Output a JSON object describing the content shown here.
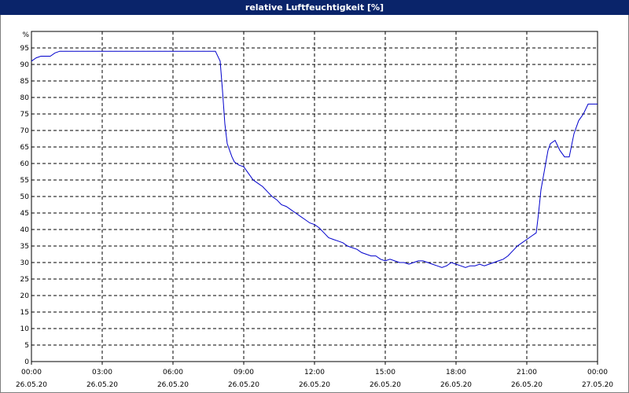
{
  "window": {
    "title": "relative Luftfeuchtigkeit [%]"
  },
  "chart_data": {
    "type": "line",
    "title": "relative Luftfeuchtigkeit [%]",
    "ylabel": "%",
    "xlabel": "",
    "ylim": [
      0,
      100
    ],
    "yticks": [
      0,
      5,
      10,
      15,
      20,
      25,
      30,
      35,
      40,
      45,
      50,
      55,
      60,
      65,
      70,
      75,
      80,
      85,
      90,
      95
    ],
    "xlim_hours": [
      0,
      24
    ],
    "xticks": [
      {
        "time": "00:00",
        "date": "26.05.20"
      },
      {
        "time": "03:00",
        "date": "26.05.20"
      },
      {
        "time": "06:00",
        "date": "26.05.20"
      },
      {
        "time": "09:00",
        "date": "26.05.20"
      },
      {
        "time": "12:00",
        "date": "26.05.20"
      },
      {
        "time": "15:00",
        "date": "26.05.20"
      },
      {
        "time": "18:00",
        "date": "26.05.20"
      },
      {
        "time": "21:00",
        "date": "26.05.20"
      },
      {
        "time": "00:00",
        "date": "27.05.20"
      }
    ],
    "grid": true,
    "line_color": "#0000cc",
    "series": [
      {
        "x": [
          0,
          0.2,
          0.4,
          0.6,
          0.8,
          1.0,
          1.2,
          1.4,
          2,
          3,
          4,
          5,
          6,
          7,
          7.5,
          7.8,
          8.0,
          8.1,
          8.2,
          8.3,
          8.4,
          8.5,
          8.6,
          8.8,
          9.0,
          9.2,
          9.4,
          9.6,
          9.8,
          10.0,
          10.2,
          10.4,
          10.6,
          10.8,
          11.0,
          11.2,
          11.4,
          11.6,
          11.8,
          12.0,
          12.2,
          12.4,
          12.6,
          12.8,
          13.0,
          13.2,
          13.4,
          13.6,
          13.8,
          14.0,
          14.2,
          14.4,
          14.6,
          14.8,
          15.0,
          15.2,
          15.4,
          15.6,
          15.8,
          16.0,
          16.2,
          16.4,
          16.6,
          16.8,
          17.0,
          17.2,
          17.4,
          17.6,
          17.8,
          18.0,
          18.2,
          18.4,
          18.6,
          18.8,
          19.0,
          19.2,
          19.4,
          19.6,
          19.8,
          20.0,
          20.2,
          20.4,
          20.6,
          20.8,
          21.0,
          21.2,
          21.4,
          21.5,
          21.6,
          21.7,
          21.8,
          21.9,
          22.0,
          22.2,
          22.4,
          22.6,
          22.8,
          23.0,
          23.2,
          23.4,
          23.6,
          23.8,
          24.0
        ],
        "y": [
          91,
          92,
          92.5,
          92.5,
          92.5,
          93.5,
          94,
          94,
          94,
          94,
          94,
          94,
          94,
          94,
          94,
          94,
          91,
          82,
          72,
          66,
          64,
          62,
          60.5,
          59.5,
          59,
          57,
          55,
          54,
          53,
          51.5,
          50,
          49,
          47.5,
          47,
          46,
          45,
          44,
          43,
          42,
          41.5,
          40.5,
          39,
          37.5,
          37,
          36.5,
          36,
          35,
          34.5,
          34,
          33,
          32.5,
          32,
          32,
          31,
          30.5,
          31,
          30.5,
          30,
          30,
          29.5,
          30,
          30.5,
          30.5,
          30,
          29.5,
          29,
          28.5,
          29,
          30,
          29.5,
          29,
          28.5,
          29,
          29,
          29.5,
          29,
          29.5,
          30,
          30.5,
          31,
          32,
          33.5,
          35,
          36,
          37,
          38,
          39,
          45,
          52,
          56,
          60,
          64,
          66,
          67,
          64,
          62,
          62,
          69,
          73,
          75,
          78,
          78,
          78
        ]
      }
    ]
  }
}
